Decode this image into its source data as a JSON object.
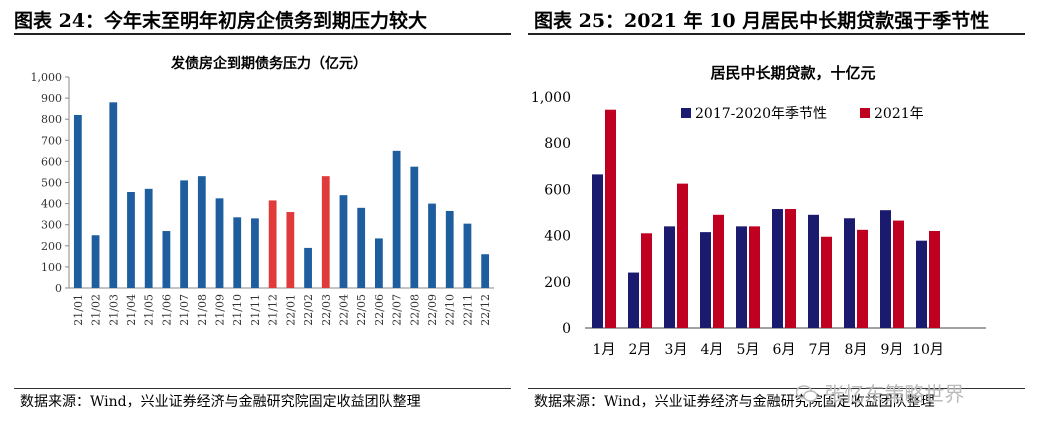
{
  "left": {
    "heading": "图表 24：今年末至明年初房企债务到期压力较大",
    "source": "数据来源：Wind，兴业证券经济与金融研究院固定收益团队整理",
    "chart_data": {
      "type": "bar",
      "title": "发债房企到期债务压力（亿元）",
      "ylim": [
        0,
        1000
      ],
      "yticks": [
        "1,000",
        "900",
        "800",
        "700",
        "600",
        "500",
        "400",
        "300",
        "200",
        "100",
        "0"
      ],
      "categories": [
        "21/01",
        "21/02",
        "21/03",
        "21/04",
        "21/05",
        "21/06",
        "21/07",
        "21/08",
        "21/09",
        "21/10",
        "21/11",
        "21/12",
        "22/01",
        "22/02",
        "22/03",
        "22/04",
        "22/05",
        "22/06",
        "22/07",
        "22/08",
        "22/09",
        "22/10",
        "22/11",
        "22/12"
      ],
      "values": [
        820,
        250,
        880,
        455,
        470,
        270,
        510,
        530,
        425,
        335,
        330,
        415,
        360,
        190,
        530,
        440,
        380,
        235,
        650,
        575,
        400,
        365,
        305,
        160
      ],
      "colors": [
        "#1f5e9e",
        "#1f5e9e",
        "#1f5e9e",
        "#1f5e9e",
        "#1f5e9e",
        "#1f5e9e",
        "#1f5e9e",
        "#1f5e9e",
        "#1f5e9e",
        "#1f5e9e",
        "#1f5e9e",
        "#e03a3a",
        "#e03a3a",
        "#1f5e9e",
        "#e03a3a",
        "#1f5e9e",
        "#1f5e9e",
        "#1f5e9e",
        "#1f5e9e",
        "#1f5e9e",
        "#1f5e9e",
        "#1f5e9e",
        "#1f5e9e",
        "#1f5e9e"
      ],
      "grid": false
    }
  },
  "right": {
    "heading": "图表 25：2021 年 10 月居民中长期贷款强于季节性",
    "source": "数据来源：Wind，兴业证券经济与金融研究院固定收益团队整理",
    "chart_data": {
      "type": "bar",
      "title": "居民中长期贷款，十亿元",
      "ylim": [
        0,
        1000
      ],
      "yticks": [
        "1,000",
        "800",
        "600",
        "400",
        "200",
        "0"
      ],
      "categories": [
        "1月",
        "2月",
        "3月",
        "4月",
        "5月",
        "6月",
        "7月",
        "8月",
        "9月",
        "10月"
      ],
      "legend_position": "top",
      "series": [
        {
          "name": "2017-2020年季节性",
          "color": "#1a1a6e",
          "values": [
            665,
            240,
            440,
            415,
            440,
            515,
            490,
            475,
            510,
            378
          ]
        },
        {
          "name": "2021年",
          "color": "#c00020",
          "values": [
            945,
            410,
            625,
            490,
            440,
            515,
            395,
            425,
            465,
            420
          ]
        }
      ],
      "grid": false
    }
  },
  "watermark": {
    "text": "张忆东策略世界",
    "icon": "wechat-icon"
  }
}
